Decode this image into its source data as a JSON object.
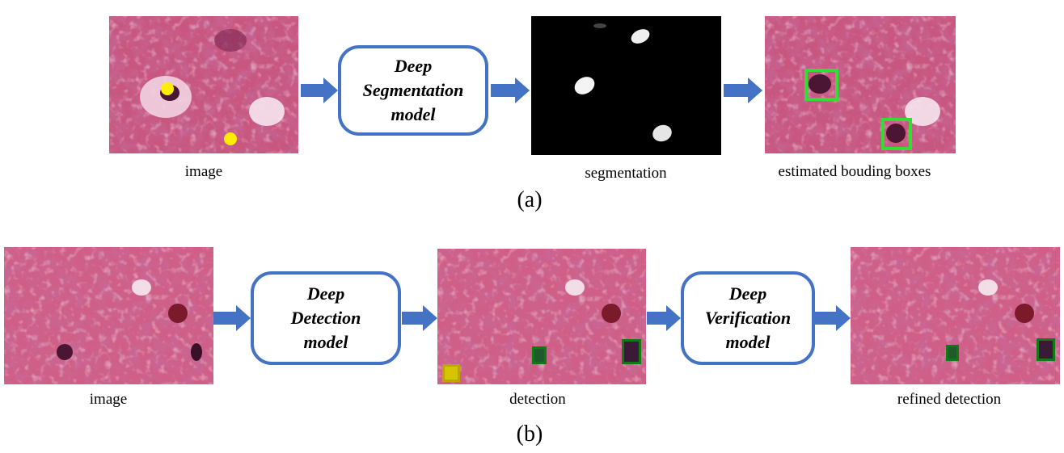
{
  "row_a": {
    "image_caption": "image",
    "model_lines": [
      "Deep",
      "Segmentation",
      "model"
    ],
    "segmentation_caption": "segmentation",
    "boxes_caption": "estimated bouding boxes",
    "panel_label": "(a)"
  },
  "row_b": {
    "image_caption": "image",
    "detection_model_lines": [
      "Deep",
      "Detection",
      "model"
    ],
    "detection_caption": "detection",
    "verification_model_lines": [
      "Deep",
      "Verification",
      "model"
    ],
    "refined_caption": "refined detection",
    "panel_label": "(b)"
  },
  "colors": {
    "arrow": "#4472c4",
    "box_border": "#4472c4",
    "point_marker": "#ffee00",
    "bbox_bright_green": "#33dd33",
    "bbox_dark_green": "#127a12",
    "bbox_yellow": "#b8a800"
  }
}
